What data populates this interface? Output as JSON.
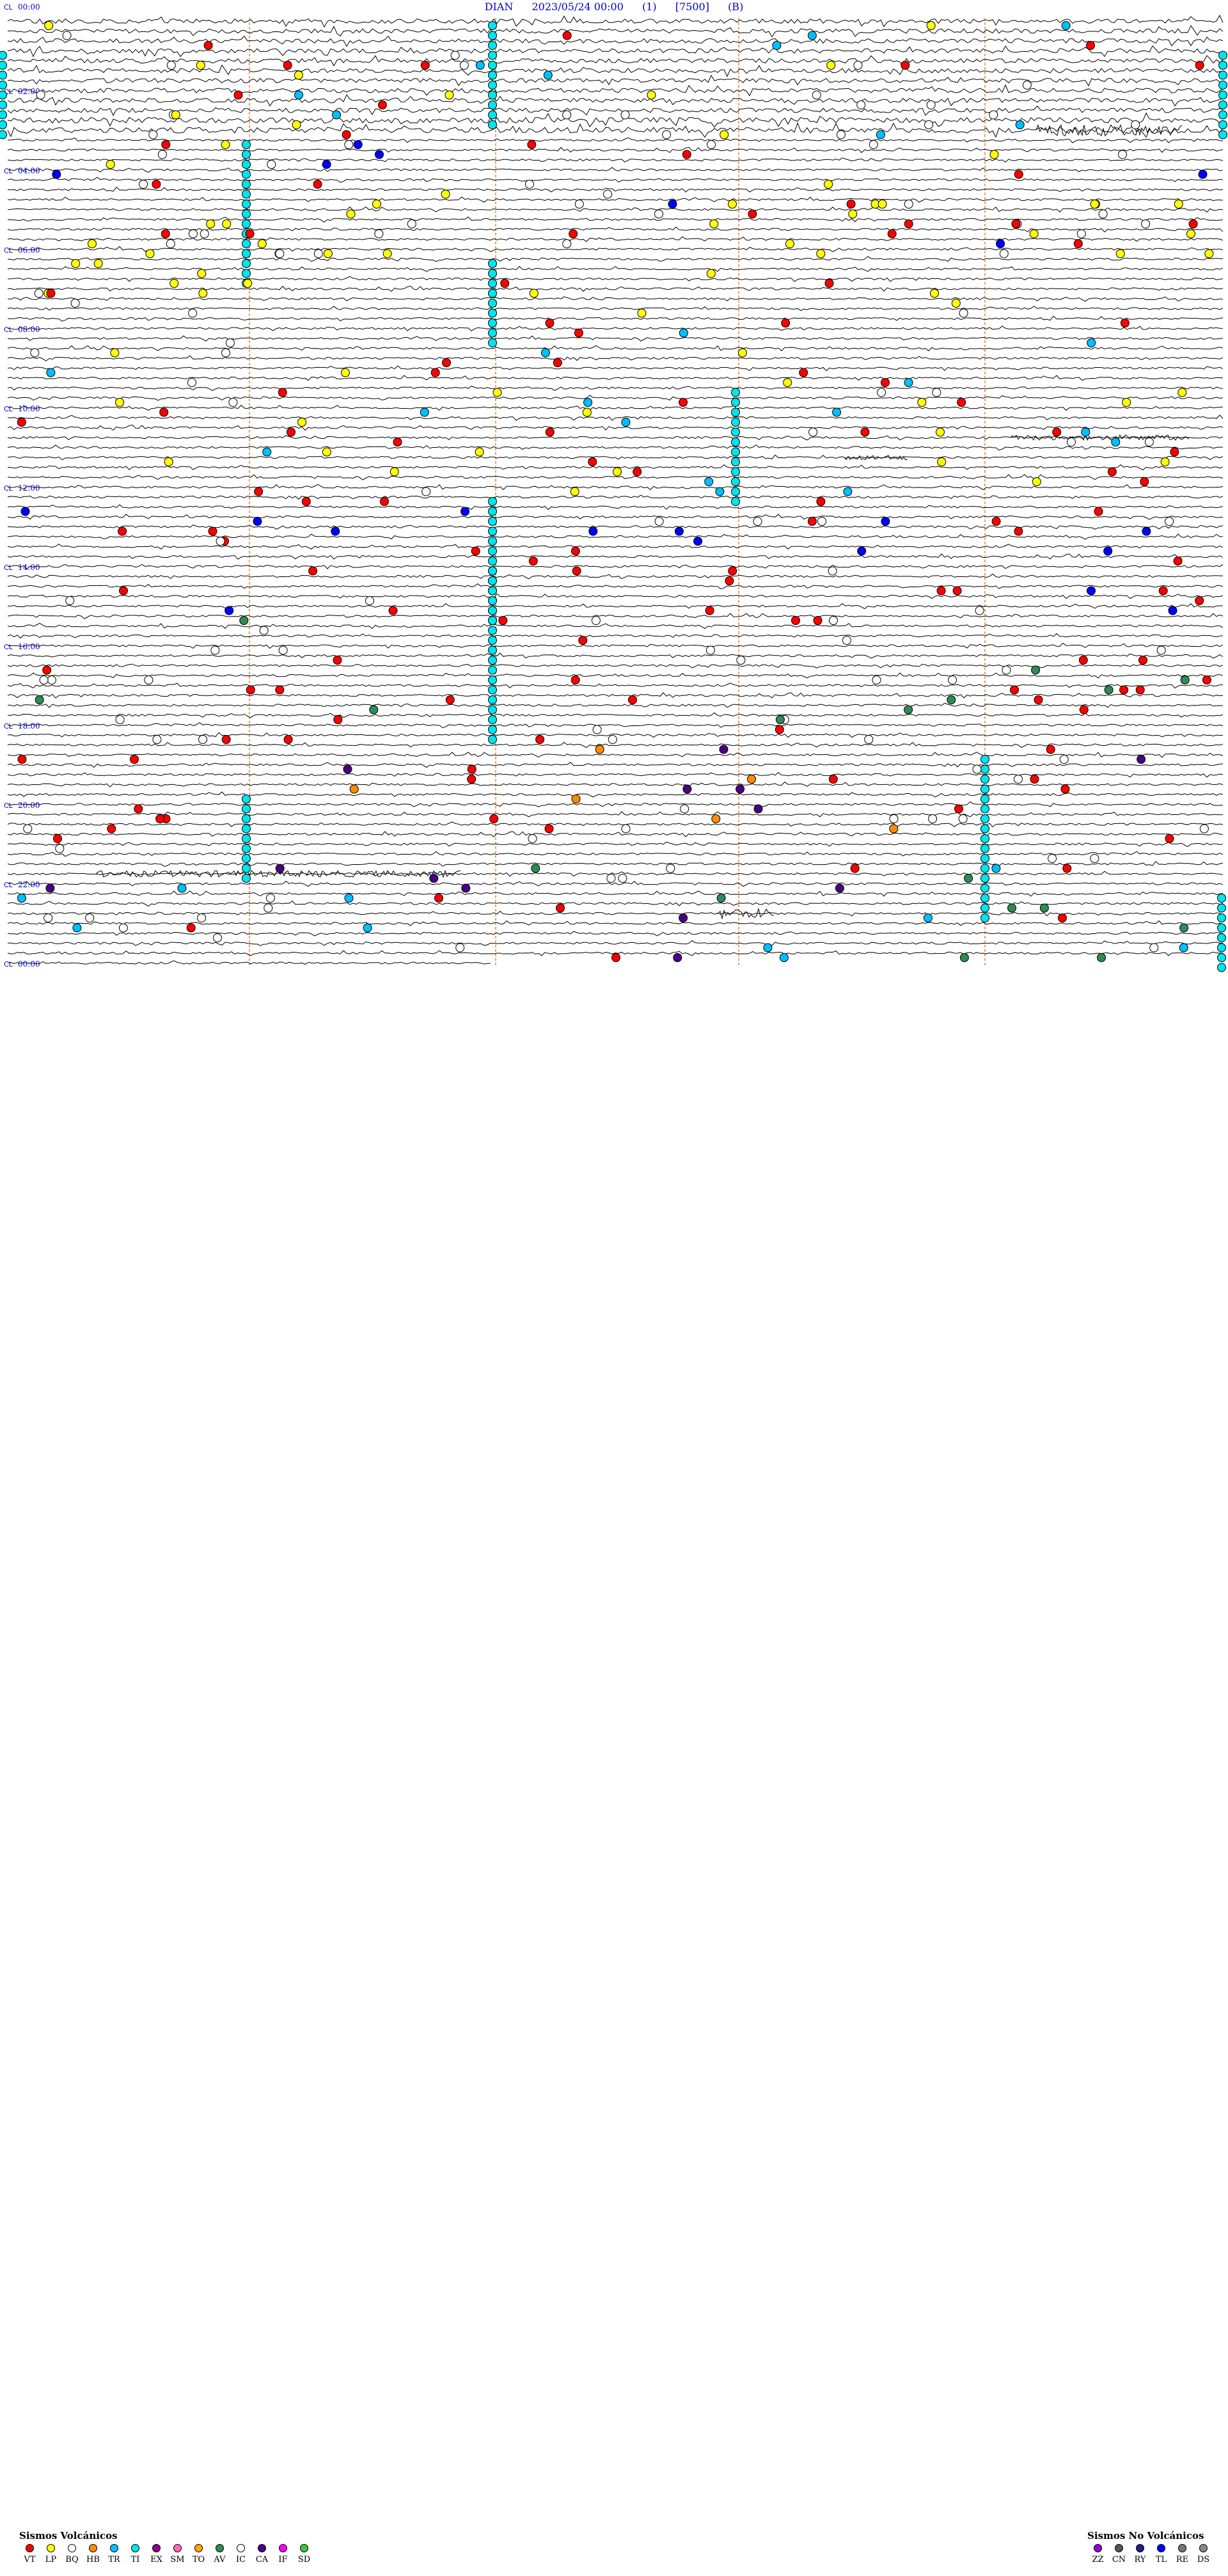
{
  "chart_data": {
    "type": "helicorder",
    "title": {
      "station": "DIAN",
      "datetime": "2023/05/24 00:00",
      "component": "(1)",
      "amplitude": "[7500]",
      "filter": "(B)"
    },
    "hour_labels": [
      "00:00",
      "02:00",
      "04:00",
      "06:00",
      "08:00",
      "10:00",
      "12:00",
      "14:00",
      "16:00",
      "18:00",
      "20:00",
      "22:00",
      "00:00"
    ],
    "line_prefix_labels": [
      "CL",
      "CL",
      "CL",
      "CL",
      "CL",
      "CL",
      "CL",
      "CL",
      "CL",
      "CL",
      "CL",
      "CL",
      "CL"
    ],
    "duration_hours": 24,
    "grid": true,
    "legend_volcanic": {
      "title": "Sismos Volcánicos",
      "items": [
        {
          "code": "VT",
          "color": "#ff0000"
        },
        {
          "code": "LP",
          "color": "#ffff00"
        },
        {
          "code": "BQ",
          "color": "#ffffff"
        },
        {
          "code": "HB",
          "color": "#ff8c00"
        },
        {
          "code": "TR",
          "color": "#00bfff"
        },
        {
          "code": "TI",
          "color": "#00e5ee"
        },
        {
          "code": "EX",
          "color": "#8b008b"
        },
        {
          "code": "SM",
          "color": "#ff69b4"
        },
        {
          "code": "TO",
          "color": "#ffa500"
        },
        {
          "code": "AV",
          "color": "#2e8b57"
        },
        {
          "code": "IC",
          "color": "#ffffff"
        },
        {
          "code": "CA",
          "color": "#4b0082"
        },
        {
          "code": "IF",
          "color": "#ff00ff"
        },
        {
          "code": "SD",
          "color": "#32cd32"
        }
      ]
    },
    "legend_nonvolcanic": {
      "title": "Sismos No Volcánicos",
      "items": [
        {
          "code": "ZZ",
          "color": "#9400d3"
        },
        {
          "code": "CN",
          "color": "#555555"
        },
        {
          "code": "RY",
          "color": "#1e1e8c"
        },
        {
          "code": "TL",
          "color": "#0000ff"
        },
        {
          "code": "RE",
          "color": "#777777"
        },
        {
          "code": "DS",
          "color": "#888888"
        }
      ]
    }
  }
}
